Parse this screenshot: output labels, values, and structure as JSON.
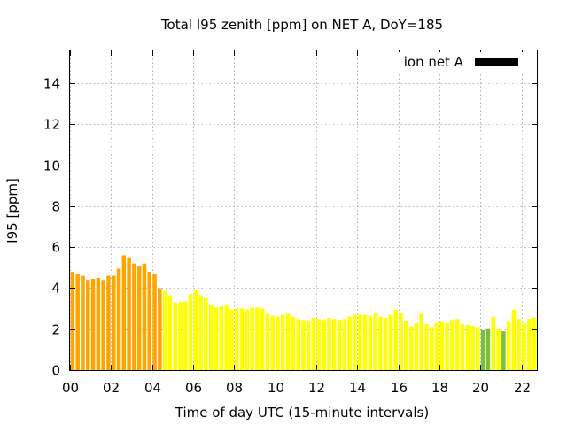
{
  "chart_data": {
    "type": "bar",
    "title": "Total I95 zenith [ppm] on NET A, DoY=185",
    "xlabel": "Time of day UTC (15-minute intervals)",
    "ylabel": "I95 [ppm]",
    "xlim": [
      0,
      22.75
    ],
    "ylim": [
      0,
      15.6
    ],
    "x_ticks": [
      "00",
      "02",
      "04",
      "06",
      "08",
      "10",
      "12",
      "14",
      "16",
      "18",
      "20",
      "22"
    ],
    "y_ticks": [
      "0",
      "2",
      "4",
      "6",
      "8",
      "10",
      "12",
      "14"
    ],
    "grid": true,
    "legend": {
      "position": "top-right",
      "entries": [
        {
          "label": "ion net A",
          "color": "#000000"
        }
      ]
    },
    "bar_colors": {
      "orange": "#ffa500",
      "yellow": "#ffff00",
      "green": "#7cbf3f"
    },
    "series": [
      {
        "name": "ion net A",
        "x_hours": [
          0,
          0.25,
          0.5,
          0.75,
          1,
          1.25,
          1.5,
          1.75,
          2,
          2.25,
          2.5,
          2.75,
          3,
          3.25,
          3.5,
          3.75,
          4,
          4.25,
          4.5,
          4.75,
          5,
          5.25,
          5.5,
          5.75,
          6,
          6.25,
          6.5,
          6.75,
          7,
          7.25,
          7.5,
          7.75,
          8,
          8.25,
          8.5,
          8.75,
          9,
          9.25,
          9.5,
          9.75,
          10,
          10.25,
          10.5,
          10.75,
          11,
          11.25,
          11.5,
          11.75,
          12,
          12.25,
          12.5,
          12.75,
          13,
          13.25,
          13.5,
          13.75,
          14,
          14.25,
          14.5,
          14.75,
          15,
          15.25,
          15.5,
          15.75,
          16,
          16.25,
          16.5,
          16.75,
          17,
          17.25,
          17.5,
          17.75,
          18,
          18.25,
          18.5,
          18.75,
          19,
          19.25,
          19.5,
          19.75,
          20,
          20.25,
          20.5,
          20.75,
          21,
          21.25,
          21.5,
          21.75,
          22,
          22.25,
          22.5
        ],
        "values": [
          4.8,
          4.7,
          4.6,
          4.4,
          4.45,
          4.5,
          4.4,
          4.6,
          4.6,
          4.95,
          5.6,
          5.5,
          5.2,
          5.1,
          5.2,
          4.8,
          4.7,
          4.0,
          3.85,
          3.65,
          3.3,
          3.3,
          3.35,
          3.7,
          3.9,
          3.65,
          3.5,
          3.2,
          3.05,
          3.1,
          3.15,
          2.95,
          3.0,
          3.0,
          2.95,
          3.05,
          3.05,
          3.0,
          2.75,
          2.65,
          2.6,
          2.7,
          2.75,
          2.6,
          2.5,
          2.45,
          2.4,
          2.55,
          2.5,
          2.45,
          2.55,
          2.5,
          2.45,
          2.5,
          2.6,
          2.7,
          2.7,
          2.7,
          2.65,
          2.75,
          2.6,
          2.55,
          2.7,
          2.95,
          2.8,
          2.4,
          2.15,
          2.3,
          2.75,
          2.25,
          2.1,
          2.3,
          2.35,
          2.3,
          2.45,
          2.5,
          2.25,
          2.2,
          2.15,
          2.1,
          1.95,
          2.0,
          2.6,
          2.0,
          1.9,
          2.35,
          2.95,
          2.5,
          2.3,
          2.5,
          2.55
        ],
        "colors": [
          "orange",
          "orange",
          "orange",
          "orange",
          "orange",
          "orange",
          "orange",
          "orange",
          "orange",
          "orange",
          "orange",
          "orange",
          "orange",
          "orange",
          "orange",
          "orange",
          "orange",
          "orange",
          "yellow",
          "yellow",
          "yellow",
          "yellow",
          "yellow",
          "yellow",
          "yellow",
          "yellow",
          "yellow",
          "yellow",
          "yellow",
          "yellow",
          "yellow",
          "yellow",
          "yellow",
          "yellow",
          "yellow",
          "yellow",
          "yellow",
          "yellow",
          "yellow",
          "yellow",
          "yellow",
          "yellow",
          "yellow",
          "yellow",
          "yellow",
          "yellow",
          "yellow",
          "yellow",
          "yellow",
          "yellow",
          "yellow",
          "yellow",
          "yellow",
          "yellow",
          "yellow",
          "yellow",
          "yellow",
          "yellow",
          "yellow",
          "yellow",
          "yellow",
          "yellow",
          "yellow",
          "yellow",
          "yellow",
          "yellow",
          "yellow",
          "yellow",
          "yellow",
          "yellow",
          "yellow",
          "yellow",
          "yellow",
          "yellow",
          "yellow",
          "yellow",
          "yellow",
          "yellow",
          "yellow",
          "yellow",
          "green",
          "green",
          "yellow",
          "yellow",
          "green",
          "yellow",
          "yellow",
          "yellow",
          "yellow",
          "yellow",
          "yellow"
        ]
      }
    ]
  }
}
